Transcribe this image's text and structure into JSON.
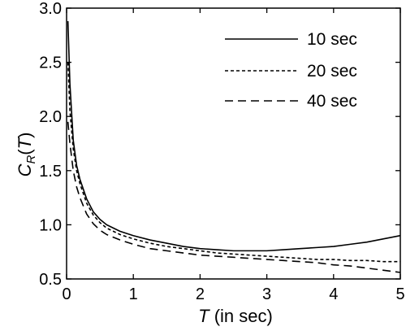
{
  "chart_data": {
    "type": "line",
    "xlabel": {
      "var": "T",
      "rest": " (in sec)"
    },
    "ylabel": {
      "base": "C",
      "sub": "R",
      "open": "(",
      "arg": "T",
      "close": ")"
    },
    "xlim": [
      0,
      5
    ],
    "ylim": [
      0.5,
      3.0
    ],
    "xticks": [
      0,
      1,
      2,
      3,
      4,
      5
    ],
    "yticks": [
      0.5,
      1.0,
      1.5,
      2.0,
      2.5,
      3.0
    ],
    "xtick_labels": [
      "0",
      "1",
      "2",
      "3",
      "4",
      "5"
    ],
    "ytick_labels": [
      "0.5",
      "1.0",
      "1.5",
      "2.0",
      "2.5",
      "3.0"
    ],
    "grid": false,
    "legend_position": "top-right",
    "series": [
      {
        "name": "10 sec",
        "dash": "solid",
        "x": [
          0.02,
          0.05,
          0.1,
          0.15,
          0.2,
          0.3,
          0.4,
          0.5,
          0.6,
          0.8,
          1.0,
          1.25,
          1.5,
          1.75,
          2.0,
          2.25,
          2.5,
          2.75,
          3.0,
          3.25,
          3.5,
          3.75,
          4.0,
          4.25,
          4.5,
          4.75,
          5.0
        ],
        "y": [
          2.88,
          2.3,
          1.78,
          1.55,
          1.42,
          1.24,
          1.12,
          1.05,
          1.0,
          0.94,
          0.9,
          0.86,
          0.83,
          0.8,
          0.78,
          0.77,
          0.76,
          0.76,
          0.76,
          0.77,
          0.78,
          0.79,
          0.8,
          0.82,
          0.84,
          0.87,
          0.9
        ]
      },
      {
        "name": "20 sec",
        "dash": "short",
        "x": [
          0.02,
          0.05,
          0.1,
          0.15,
          0.2,
          0.3,
          0.4,
          0.5,
          0.6,
          0.8,
          1.0,
          1.25,
          1.5,
          1.75,
          2.0,
          2.25,
          2.5,
          2.75,
          3.0,
          3.25,
          3.5,
          3.75,
          4.0,
          4.25,
          4.5,
          4.75,
          5.0
        ],
        "y": [
          2.5,
          2.05,
          1.7,
          1.5,
          1.38,
          1.2,
          1.09,
          1.02,
          0.97,
          0.91,
          0.87,
          0.83,
          0.8,
          0.78,
          0.76,
          0.74,
          0.73,
          0.72,
          0.71,
          0.7,
          0.69,
          0.68,
          0.68,
          0.67,
          0.67,
          0.66,
          0.66
        ]
      },
      {
        "name": "40 sec",
        "dash": "long",
        "x": [
          0.02,
          0.05,
          0.1,
          0.15,
          0.2,
          0.3,
          0.4,
          0.5,
          0.6,
          0.8,
          1.0,
          1.25,
          1.5,
          1.75,
          2.0,
          2.25,
          2.5,
          2.75,
          3.0,
          3.25,
          3.5,
          3.75,
          4.0,
          4.25,
          4.5,
          4.75,
          5.0
        ],
        "y": [
          1.95,
          1.75,
          1.5,
          1.35,
          1.25,
          1.1,
          1.01,
          0.95,
          0.91,
          0.86,
          0.82,
          0.78,
          0.76,
          0.74,
          0.72,
          0.71,
          0.7,
          0.69,
          0.68,
          0.67,
          0.66,
          0.65,
          0.63,
          0.62,
          0.6,
          0.58,
          0.56
        ]
      }
    ]
  }
}
